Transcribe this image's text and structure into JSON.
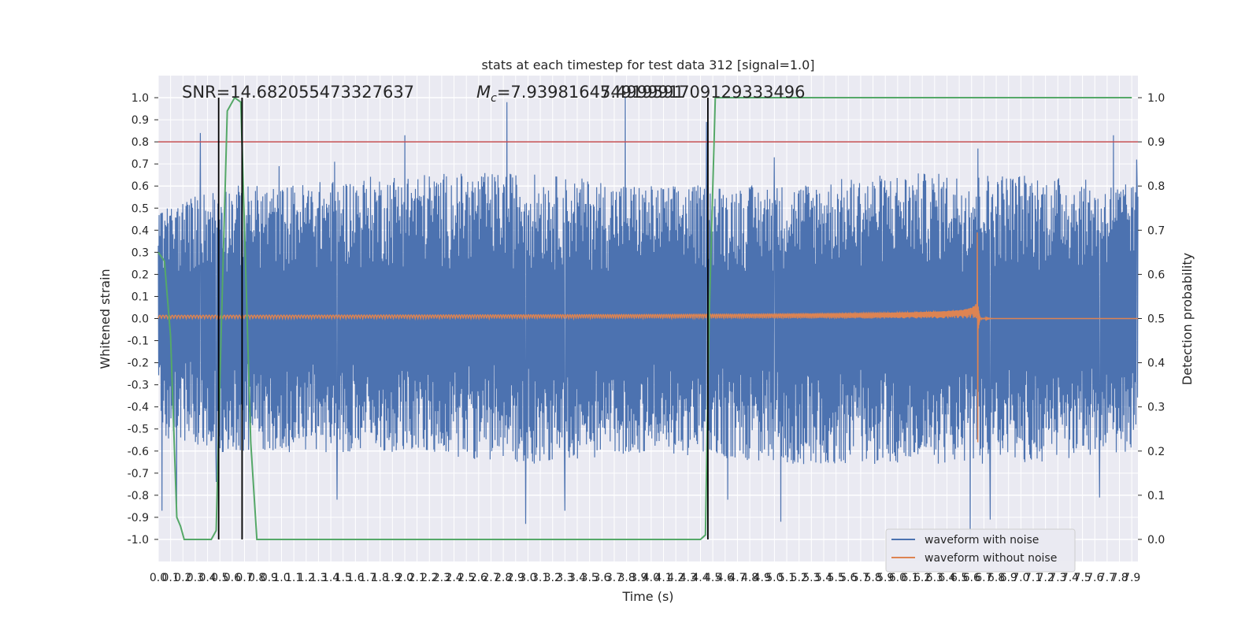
{
  "chart_data": {
    "type": "line",
    "title": "stats at each timestep for test data 312 [signal=1.0]",
    "xlabel": "Time (s)",
    "ylabel": "Whitened strain",
    "ylabel_right": "Detection probability",
    "xlim": [
      0.0,
      7.95
    ],
    "ylim": [
      -1.1,
      1.1
    ],
    "ylim_right": [
      -0.05,
      1.05
    ],
    "x_ticks": [
      0.0,
      0.1,
      0.2,
      0.3,
      0.4,
      0.5,
      0.6,
      0.7,
      0.8,
      0.9,
      1.0,
      1.1,
      1.2,
      1.3,
      1.4,
      1.5,
      1.6,
      1.7,
      1.8,
      1.9,
      2.0,
      2.1,
      2.2,
      2.3,
      2.4,
      2.5,
      2.6,
      2.7,
      2.8,
      2.9,
      3.0,
      3.1,
      3.2,
      3.3,
      3.4,
      3.5,
      3.6,
      3.7,
      3.8,
      3.9,
      4.0,
      4.1,
      4.2,
      4.3,
      4.4,
      4.5,
      4.6,
      4.7,
      4.8,
      4.9,
      5.0,
      5.1,
      5.2,
      5.3,
      5.4,
      5.5,
      5.6,
      5.7,
      5.8,
      5.9,
      6.0,
      6.1,
      6.2,
      6.3,
      6.4,
      6.5,
      6.6,
      6.7,
      6.8,
      6.9,
      7.0,
      7.1,
      7.2,
      7.3,
      7.4,
      7.5,
      7.6,
      7.7,
      7.8,
      7.9
    ],
    "y_ticks": [
      -1.0,
      -0.9,
      -0.8,
      -0.7,
      -0.6,
      -0.5,
      -0.4,
      -0.3,
      -0.2,
      -0.1,
      0.0,
      0.1,
      0.2,
      0.3,
      0.4,
      0.5,
      0.6,
      0.7,
      0.8,
      0.9,
      1.0
    ],
    "y_ticks_right": [
      0.0,
      0.1,
      0.2,
      0.3,
      0.4,
      0.5,
      0.6,
      0.7,
      0.8,
      0.9,
      1.0
    ],
    "grid": true,
    "legend_position": "lower-right",
    "annotations": {
      "snr": "SNR=14.682055473327637",
      "mc": "=7.939816474919591",
      "mc_symbol": "M",
      "mc_subscript": "c",
      "overlap_text": "5.499991709129333496"
    },
    "threshold": {
      "value": 0.9,
      "axis": "right",
      "color": "#c44e52"
    },
    "vertical_lines": [
      0.49,
      0.68,
      4.46
    ],
    "series": [
      {
        "name": "waveform with noise",
        "color": "#4c72b0",
        "t_start": 0.0,
        "t_end": 7.95,
        "envelope": {
          "t": [
            0.0,
            0.5,
            1.0,
            2.0,
            3.0,
            4.0,
            5.0,
            6.0,
            7.0,
            7.95
          ],
          "hi": [
            0.45,
            0.55,
            0.55,
            0.6,
            0.6,
            0.55,
            0.55,
            0.6,
            0.6,
            0.55
          ],
          "lo": [
            -0.5,
            -0.55,
            -0.55,
            -0.55,
            -0.6,
            -0.55,
            -0.6,
            -0.6,
            -0.6,
            -0.55
          ]
        },
        "peaks": [
          [
            0.34,
            0.84
          ],
          [
            0.98,
            0.69
          ],
          [
            1.43,
            0.71
          ],
          [
            2.0,
            0.83
          ],
          [
            2.83,
            0.98
          ],
          [
            3.79,
            1.0
          ],
          [
            4.45,
            0.89
          ],
          [
            5.0,
            0.73
          ],
          [
            6.65,
            0.77
          ],
          [
            7.75,
            0.83
          ],
          [
            7.94,
            0.72
          ]
        ],
        "troughs": [
          [
            0.03,
            -0.87
          ],
          [
            0.15,
            -0.84
          ],
          [
            0.47,
            -0.74
          ],
          [
            1.45,
            -0.82
          ],
          [
            2.98,
            -0.93
          ],
          [
            3.3,
            -0.87
          ],
          [
            4.62,
            -0.82
          ],
          [
            5.05,
            -0.92
          ],
          [
            6.59,
            -1.0
          ],
          [
            6.75,
            -0.91
          ],
          [
            7.64,
            -0.81
          ]
        ]
      },
      {
        "name": "waveform without noise",
        "color": "#dd8452",
        "chirp": {
          "t_start": 0.0,
          "t_merger": 6.65,
          "t_end": 7.95,
          "amp_start": 0.015,
          "amp_merger_hi": 0.39,
          "amp_merger_lo": -0.56,
          "cycles_to_merger": 210
        }
      },
      {
        "name": "detection probability",
        "axis": "right",
        "color": "#55a868",
        "x": [
          0.0,
          0.05,
          0.1,
          0.15,
          0.18,
          0.21,
          0.43,
          0.47,
          0.5,
          0.56,
          0.62,
          0.67,
          0.75,
          0.8,
          2.83,
          2.9,
          4.4,
          4.44,
          4.47,
          4.52,
          7.9
        ],
        "y": [
          0.65,
          0.63,
          0.46,
          0.05,
          0.03,
          0.0,
          0.0,
          0.02,
          0.36,
          0.97,
          1.0,
          0.99,
          0.22,
          0.0,
          0.0,
          0.0,
          0.0,
          0.01,
          0.5,
          1.0,
          1.0
        ]
      }
    ]
  }
}
